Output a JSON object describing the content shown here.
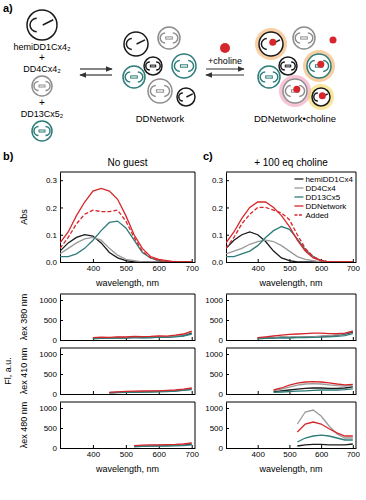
{
  "diagram": {
    "label": "a)",
    "species": [
      "hemiDD1Cx4₂",
      "DD4Cx4₂",
      "DD13Cx5₂"
    ],
    "plus": "+",
    "network": "DDNetwork",
    "arrow_label": "+choline",
    "product": "DDNetwork•choline"
  },
  "panel_labels": [
    "b)",
    "c)"
  ],
  "fl_axis_label": "Fl, a.u.",
  "chart_data": [
    {
      "type": "line",
      "title": "No guest",
      "ylabel": "Abs",
      "xlabel": "wavelength, nm",
      "x": [
        300,
        325,
        350,
        375,
        400,
        425,
        450,
        475,
        500,
        525,
        550,
        575,
        600,
        625,
        650,
        675,
        700
      ],
      "xlim": [
        300,
        710
      ],
      "xticks": [
        400,
        500,
        600,
        700
      ],
      "ylim": [
        0,
        0.33
      ],
      "yticks": [
        {
          "value": 0,
          "label": "0.0"
        },
        0.1,
        0.2,
        0.3
      ],
      "series": [
        {
          "color": "#1a1a1a",
          "values": [
            0.04,
            0.07,
            0.09,
            0.1,
            0.095,
            0.07,
            0.035,
            0.015,
            0.005,
            0,
            0,
            0,
            0,
            0,
            0,
            0,
            0
          ]
        },
        {
          "color": "#9a9a9a",
          "values": [
            0.03,
            0.05,
            0.07,
            0.085,
            0.09,
            0.08,
            0.05,
            0.025,
            0.01,
            0.005,
            0,
            0,
            0,
            0,
            0,
            0,
            0
          ]
        },
        {
          "color": "#2e7d7a",
          "values": [
            0.02,
            0.02,
            0.03,
            0.05,
            0.08,
            0.115,
            0.145,
            0.15,
            0.125,
            0.08,
            0.035,
            0.015,
            0.005,
            0,
            0,
            0,
            0
          ]
        },
        {
          "color": "#d7262b",
          "values": [
            0.07,
            0.11,
            0.17,
            0.22,
            0.26,
            0.27,
            0.26,
            0.23,
            0.17,
            0.1,
            0.05,
            0.02,
            0.01,
            0.005,
            0,
            0,
            0
          ]
        },
        {
          "color": "#d7262b",
          "line_style": "dashed",
          "values": [
            0.05,
            0.09,
            0.14,
            0.175,
            0.19,
            0.185,
            0.185,
            0.19,
            0.15,
            0.09,
            0.04,
            0.015,
            0.005,
            0,
            0,
            0,
            0
          ]
        }
      ]
    },
    {
      "type": "line",
      "title": "+ 100 eq choline",
      "xlabel": "wavelength, nm",
      "legend": "top-right",
      "x": [
        300,
        325,
        350,
        375,
        400,
        425,
        450,
        475,
        500,
        525,
        550,
        575,
        600,
        625,
        650,
        675,
        700
      ],
      "xlim": [
        300,
        710
      ],
      "xticks": [
        400,
        500,
        600,
        700
      ],
      "ylim": [
        0,
        0.33
      ],
      "yticks": [
        {
          "value": 0,
          "label": "0.0"
        },
        0.1,
        0.2,
        0.3
      ],
      "series": [
        {
          "name": "hemiDD1Cx4",
          "color": "#1a1a1a",
          "values": [
            0.05,
            0.08,
            0.1,
            0.11,
            0.1,
            0.075,
            0.04,
            0.015,
            0.005,
            0,
            0,
            0,
            0,
            0,
            0,
            0,
            0
          ]
        },
        {
          "name": "DD4Cx4",
          "color": "#9a9a9a",
          "values": [
            0.03,
            0.04,
            0.05,
            0.065,
            0.075,
            0.08,
            0.075,
            0.06,
            0.04,
            0.02,
            0.01,
            0.005,
            0,
            0,
            0,
            0,
            0
          ]
        },
        {
          "name": "DD13Cx5",
          "color": "#2e7d7a",
          "values": [
            0.02,
            0.02,
            0.03,
            0.04,
            0.06,
            0.09,
            0.115,
            0.13,
            0.12,
            0.085,
            0.045,
            0.02,
            0.005,
            0,
            0,
            0,
            0
          ]
        },
        {
          "name": "DDNetwork",
          "color": "#d7262b",
          "values": [
            0.07,
            0.11,
            0.16,
            0.2,
            0.22,
            0.22,
            0.2,
            0.17,
            0.13,
            0.08,
            0.04,
            0.015,
            0.005,
            0,
            0,
            0,
            0
          ]
        },
        {
          "name": "Added",
          "color": "#d7262b",
          "line_style": "dashed",
          "values": [
            0.05,
            0.09,
            0.14,
            0.175,
            0.2,
            0.2,
            0.19,
            0.18,
            0.155,
            0.1,
            0.05,
            0.02,
            0.005,
            0,
            0,
            0,
            0
          ]
        }
      ]
    },
    {
      "type": "line",
      "ylabel": "λex 380 nm",
      "tick_labels": "y",
      "x": [
        300,
        325,
        350,
        375,
        400,
        425,
        450,
        475,
        500,
        525,
        550,
        575,
        600,
        625,
        650,
        675,
        700
      ],
      "xlim": [
        300,
        710
      ],
      "xticks": [
        400,
        500,
        600,
        700
      ],
      "ylim": [
        0,
        1150
      ],
      "yticks": [
        0,
        500,
        1000
      ],
      "series": [
        {
          "color": "#1a1a1a",
          "values": [
            null,
            null,
            null,
            null,
            40,
            50,
            45,
            60,
            55,
            70,
            60,
            65,
            80,
            75,
            90,
            110,
            170
          ]
        },
        {
          "color": "#9a9a9a",
          "values": [
            null,
            null,
            null,
            null,
            50,
            60,
            55,
            70,
            65,
            80,
            75,
            70,
            90,
            85,
            100,
            130,
            200
          ]
        },
        {
          "color": "#2e7d7a",
          "values": [
            null,
            null,
            null,
            null,
            30,
            40,
            45,
            50,
            45,
            55,
            60,
            55,
            70,
            65,
            80,
            100,
            150
          ]
        },
        {
          "color": "#d7262b",
          "values": [
            null,
            null,
            null,
            null,
            60,
            70,
            65,
            80,
            75,
            90,
            85,
            90,
            100,
            95,
            120,
            150,
            220
          ]
        }
      ]
    },
    {
      "type": "line",
      "tick_labels": "y",
      "x": [
        300,
        325,
        350,
        375,
        400,
        425,
        450,
        475,
        500,
        525,
        550,
        575,
        600,
        625,
        650,
        675,
        700
      ],
      "xlim": [
        300,
        710
      ],
      "xticks": [
        400,
        500,
        600,
        700
      ],
      "ylim": [
        0,
        1150
      ],
      "yticks": [
        0,
        500,
        1000
      ],
      "series": [
        {
          "color": "#1a1a1a",
          "values": [
            null,
            null,
            null,
            null,
            50,
            60,
            55,
            70,
            65,
            80,
            75,
            80,
            90,
            100,
            120,
            150,
            200
          ]
        },
        {
          "color": "#9a9a9a",
          "values": [
            null,
            null,
            null,
            null,
            40,
            55,
            60,
            70,
            70,
            85,
            80,
            85,
            95,
            110,
            130,
            160,
            220
          ]
        },
        {
          "color": "#2e7d7a",
          "values": [
            null,
            null,
            null,
            null,
            30,
            40,
            45,
            50,
            50,
            60,
            60,
            65,
            70,
            80,
            90,
            110,
            160
          ]
        },
        {
          "color": "#d7262b",
          "values": [
            null,
            null,
            null,
            null,
            60,
            80,
            100,
            120,
            140,
            150,
            160,
            170,
            170,
            160,
            160,
            170,
            220
          ]
        }
      ]
    },
    {
      "type": "line",
      "ylabel": "λex 410 nm",
      "tick_labels": "y",
      "x": [
        300,
        325,
        350,
        375,
        400,
        425,
        450,
        475,
        500,
        525,
        550,
        575,
        600,
        625,
        650,
        675,
        700
      ],
      "xlim": [
        300,
        710
      ],
      "xticks": [
        400,
        500,
        600,
        700
      ],
      "ylim": [
        0,
        1150
      ],
      "yticks": [
        0,
        500,
        1000
      ],
      "series": [
        {
          "color": "#1a1a1a",
          "values": [
            null,
            null,
            null,
            null,
            null,
            null,
            30,
            40,
            45,
            50,
            55,
            60,
            65,
            70,
            80,
            100,
            130
          ]
        },
        {
          "color": "#9a9a9a",
          "values": [
            null,
            null,
            null,
            null,
            null,
            null,
            40,
            50,
            55,
            60,
            60,
            70,
            75,
            80,
            90,
            110,
            140
          ]
        },
        {
          "color": "#2e7d7a",
          "values": [
            null,
            null,
            null,
            null,
            null,
            null,
            30,
            35,
            40,
            45,
            50,
            50,
            55,
            60,
            70,
            90,
            110
          ]
        },
        {
          "color": "#d7262b",
          "values": [
            null,
            null,
            null,
            null,
            null,
            null,
            40,
            55,
            65,
            70,
            75,
            80,
            80,
            90,
            100,
            120,
            150
          ]
        }
      ]
    },
    {
      "type": "line",
      "tick_labels": "y",
      "x": [
        300,
        325,
        350,
        375,
        400,
        425,
        450,
        475,
        500,
        525,
        550,
        575,
        600,
        625,
        650,
        675,
        700
      ],
      "xlim": [
        300,
        710
      ],
      "xticks": [
        400,
        500,
        600,
        700
      ],
      "ylim": [
        0,
        1150
      ],
      "yticks": [
        0,
        500,
        1000
      ],
      "series": [
        {
          "color": "#1a1a1a",
          "values": [
            null,
            null,
            null,
            null,
            null,
            null,
            60,
            80,
            100,
            120,
            140,
            150,
            150,
            140,
            140,
            150,
            180
          ]
        },
        {
          "color": "#9a9a9a",
          "values": [
            null,
            null,
            null,
            null,
            null,
            null,
            80,
            120,
            170,
            220,
            250,
            260,
            250,
            230,
            210,
            200,
            220
          ]
        },
        {
          "color": "#2e7d7a",
          "values": [
            null,
            null,
            null,
            null,
            null,
            null,
            40,
            50,
            60,
            70,
            80,
            90,
            100,
            100,
            100,
            110,
            130
          ]
        },
        {
          "color": "#d7262b",
          "values": [
            null,
            null,
            null,
            null,
            null,
            null,
            100,
            150,
            220,
            270,
            300,
            310,
            300,
            280,
            250,
            230,
            240
          ]
        }
      ]
    },
    {
      "type": "line",
      "ylabel": "λex 480 nm",
      "xlabel": "wavelength, nm",
      "x": [
        300,
        325,
        350,
        375,
        400,
        425,
        450,
        475,
        500,
        525,
        550,
        575,
        600,
        625,
        650,
        675,
        700
      ],
      "xlim": [
        300,
        710
      ],
      "xticks": [
        400,
        500,
        600,
        700
      ],
      "ylim": [
        0,
        1150
      ],
      "yticks": [
        0,
        500,
        1000
      ],
      "series": [
        {
          "color": "#1a1a1a",
          "values": [
            null,
            null,
            null,
            null,
            null,
            null,
            null,
            null,
            null,
            40,
            50,
            55,
            60,
            60,
            70,
            80,
            100
          ]
        },
        {
          "color": "#9a9a9a",
          "values": [
            null,
            null,
            null,
            null,
            null,
            null,
            null,
            null,
            null,
            50,
            60,
            65,
            70,
            70,
            80,
            90,
            120
          ]
        },
        {
          "color": "#2e7d7a",
          "values": [
            null,
            null,
            null,
            null,
            null,
            null,
            null,
            null,
            null,
            30,
            40,
            45,
            50,
            50,
            55,
            60,
            80
          ]
        },
        {
          "color": "#d7262b",
          "values": [
            null,
            null,
            null,
            null,
            null,
            null,
            null,
            null,
            null,
            60,
            70,
            80,
            80,
            85,
            90,
            100,
            130
          ]
        }
      ]
    },
    {
      "type": "line",
      "xlabel": "wavelength, nm",
      "x": [
        300,
        325,
        350,
        375,
        400,
        425,
        450,
        475,
        500,
        525,
        550,
        575,
        600,
        625,
        650,
        675,
        700
      ],
      "xlim": [
        300,
        710
      ],
      "xticks": [
        400,
        500,
        600,
        700
      ],
      "ylim": [
        0,
        1150
      ],
      "yticks": [
        0,
        500,
        1000
      ],
      "series": [
        {
          "color": "#1a1a1a",
          "values": [
            null,
            null,
            null,
            null,
            null,
            null,
            null,
            null,
            null,
            50,
            80,
            90,
            90,
            80,
            80,
            80,
            100
          ]
        },
        {
          "color": "#9a9a9a",
          "values": [
            null,
            null,
            null,
            null,
            null,
            null,
            null,
            null,
            null,
            600,
            900,
            950,
            800,
            550,
            350,
            250,
            250
          ]
        },
        {
          "color": "#2e7d7a",
          "values": [
            null,
            null,
            null,
            null,
            null,
            null,
            null,
            null,
            null,
            150,
            250,
            300,
            320,
            300,
            250,
            200,
            200
          ]
        },
        {
          "color": "#d7262b",
          "values": [
            null,
            null,
            null,
            null,
            null,
            null,
            null,
            null,
            null,
            400,
            600,
            650,
            600,
            480,
            380,
            300,
            300
          ]
        }
      ]
    }
  ]
}
